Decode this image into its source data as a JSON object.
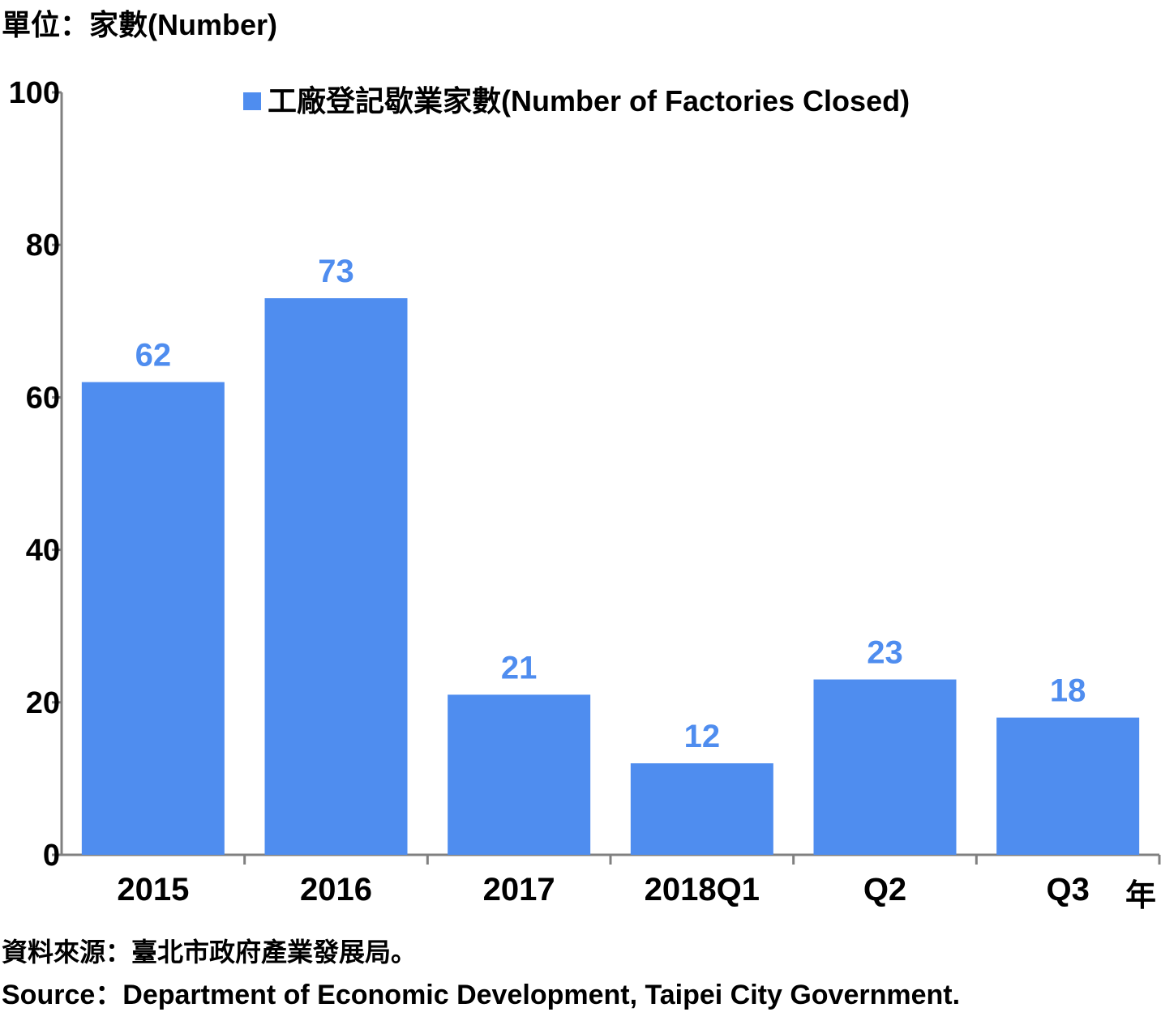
{
  "unit_label": "單位：家數(Number)",
  "x_unit_label": "年",
  "source_zh": "資料來源：臺北市政府產業發展局。",
  "source_en": "Source：Department of Economic Development, Taipei City Government.",
  "chart_data": {
    "type": "bar",
    "categories": [
      "2015",
      "2016",
      "2017",
      "2018Q1",
      "Q2",
      "Q3"
    ],
    "series": [
      {
        "name": "工廠登記歇業家數(Number of Factories Closed)",
        "values": [
          62,
          73,
          21,
          12,
          23,
          18
        ]
      }
    ],
    "ylim": [
      0,
      100
    ],
    "yticks": [
      0,
      20,
      40,
      60,
      80,
      100
    ],
    "grid": false,
    "legend": "top-right",
    "data_labels": true,
    "colors": {
      "bar": "#4f8def",
      "label": "#4f8def",
      "axis": "#808080"
    }
  }
}
